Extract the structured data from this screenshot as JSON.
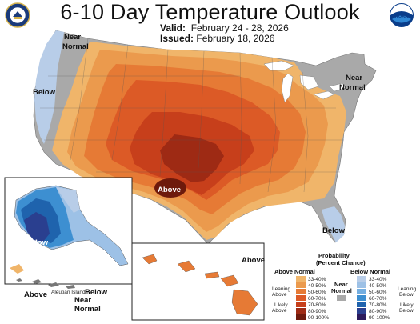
{
  "header": {
    "title": "6-10 Day Temperature Outlook",
    "valid_label": "Valid:",
    "valid_value": "February 24 - 28, 2026",
    "issued_label": "Issued:",
    "issued_value": "February 18, 2026",
    "left_logo": "doc-seal-icon",
    "right_logo": "noaa-logo-icon",
    "noaa_text": "NOAA"
  },
  "map_labels": {
    "near_normal_nw_1": "Near",
    "near_normal_nw_2": "Normal",
    "below_west": "Below",
    "near_normal_ne_1": "Near",
    "near_normal_ne_2": "Normal",
    "above_center": "Above",
    "below_florida": "Below",
    "alaska_below": "Below",
    "alaska_above": "Above",
    "aleutian": "Aleutian Islands",
    "aleutian_below": "Below",
    "aleutian_near_1": "Near",
    "aleutian_near_2": "Normal",
    "hawaii_above": "Above"
  },
  "legend": {
    "title_1": "Probability",
    "title_2": "(Percent Chance)",
    "above_header": "Above Normal",
    "below_header": "Below Normal",
    "near_header_1": "Near",
    "near_header_2": "Normal",
    "leaning_above_1": "Leaning",
    "leaning_above_2": "Above",
    "likely_above_1": "Likely",
    "likely_above_2": "Above",
    "leaning_below_1": "Leaning",
    "leaning_below_2": "Below",
    "likely_below_1": "Likely",
    "likely_below_2": "Below",
    "above_classes": [
      {
        "label": "33-40%",
        "color": "#f0b56a"
      },
      {
        "label": "40-50%",
        "color": "#eb9a4d"
      },
      {
        "label": "50-60%",
        "color": "#e67a35"
      },
      {
        "label": "60-70%",
        "color": "#dc5a26"
      },
      {
        "label": "70-80%",
        "color": "#c73f1b"
      },
      {
        "label": "80-90%",
        "color": "#9e2a14"
      },
      {
        "label": "90-100%",
        "color": "#6e1a0c"
      }
    ],
    "below_classes": [
      {
        "label": "33-40%",
        "color": "#b8cde8"
      },
      {
        "label": "40-50%",
        "color": "#9dc1e6"
      },
      {
        "label": "50-60%",
        "color": "#74aee0"
      },
      {
        "label": "60-70%",
        "color": "#3d8fd1"
      },
      {
        "label": "70-80%",
        "color": "#1f63ad"
      },
      {
        "label": "80-90%",
        "color": "#2a3f8f"
      },
      {
        "label": "90-100%",
        "color": "#2b1a5c"
      }
    ],
    "near_color": "#a9a9a9"
  }
}
